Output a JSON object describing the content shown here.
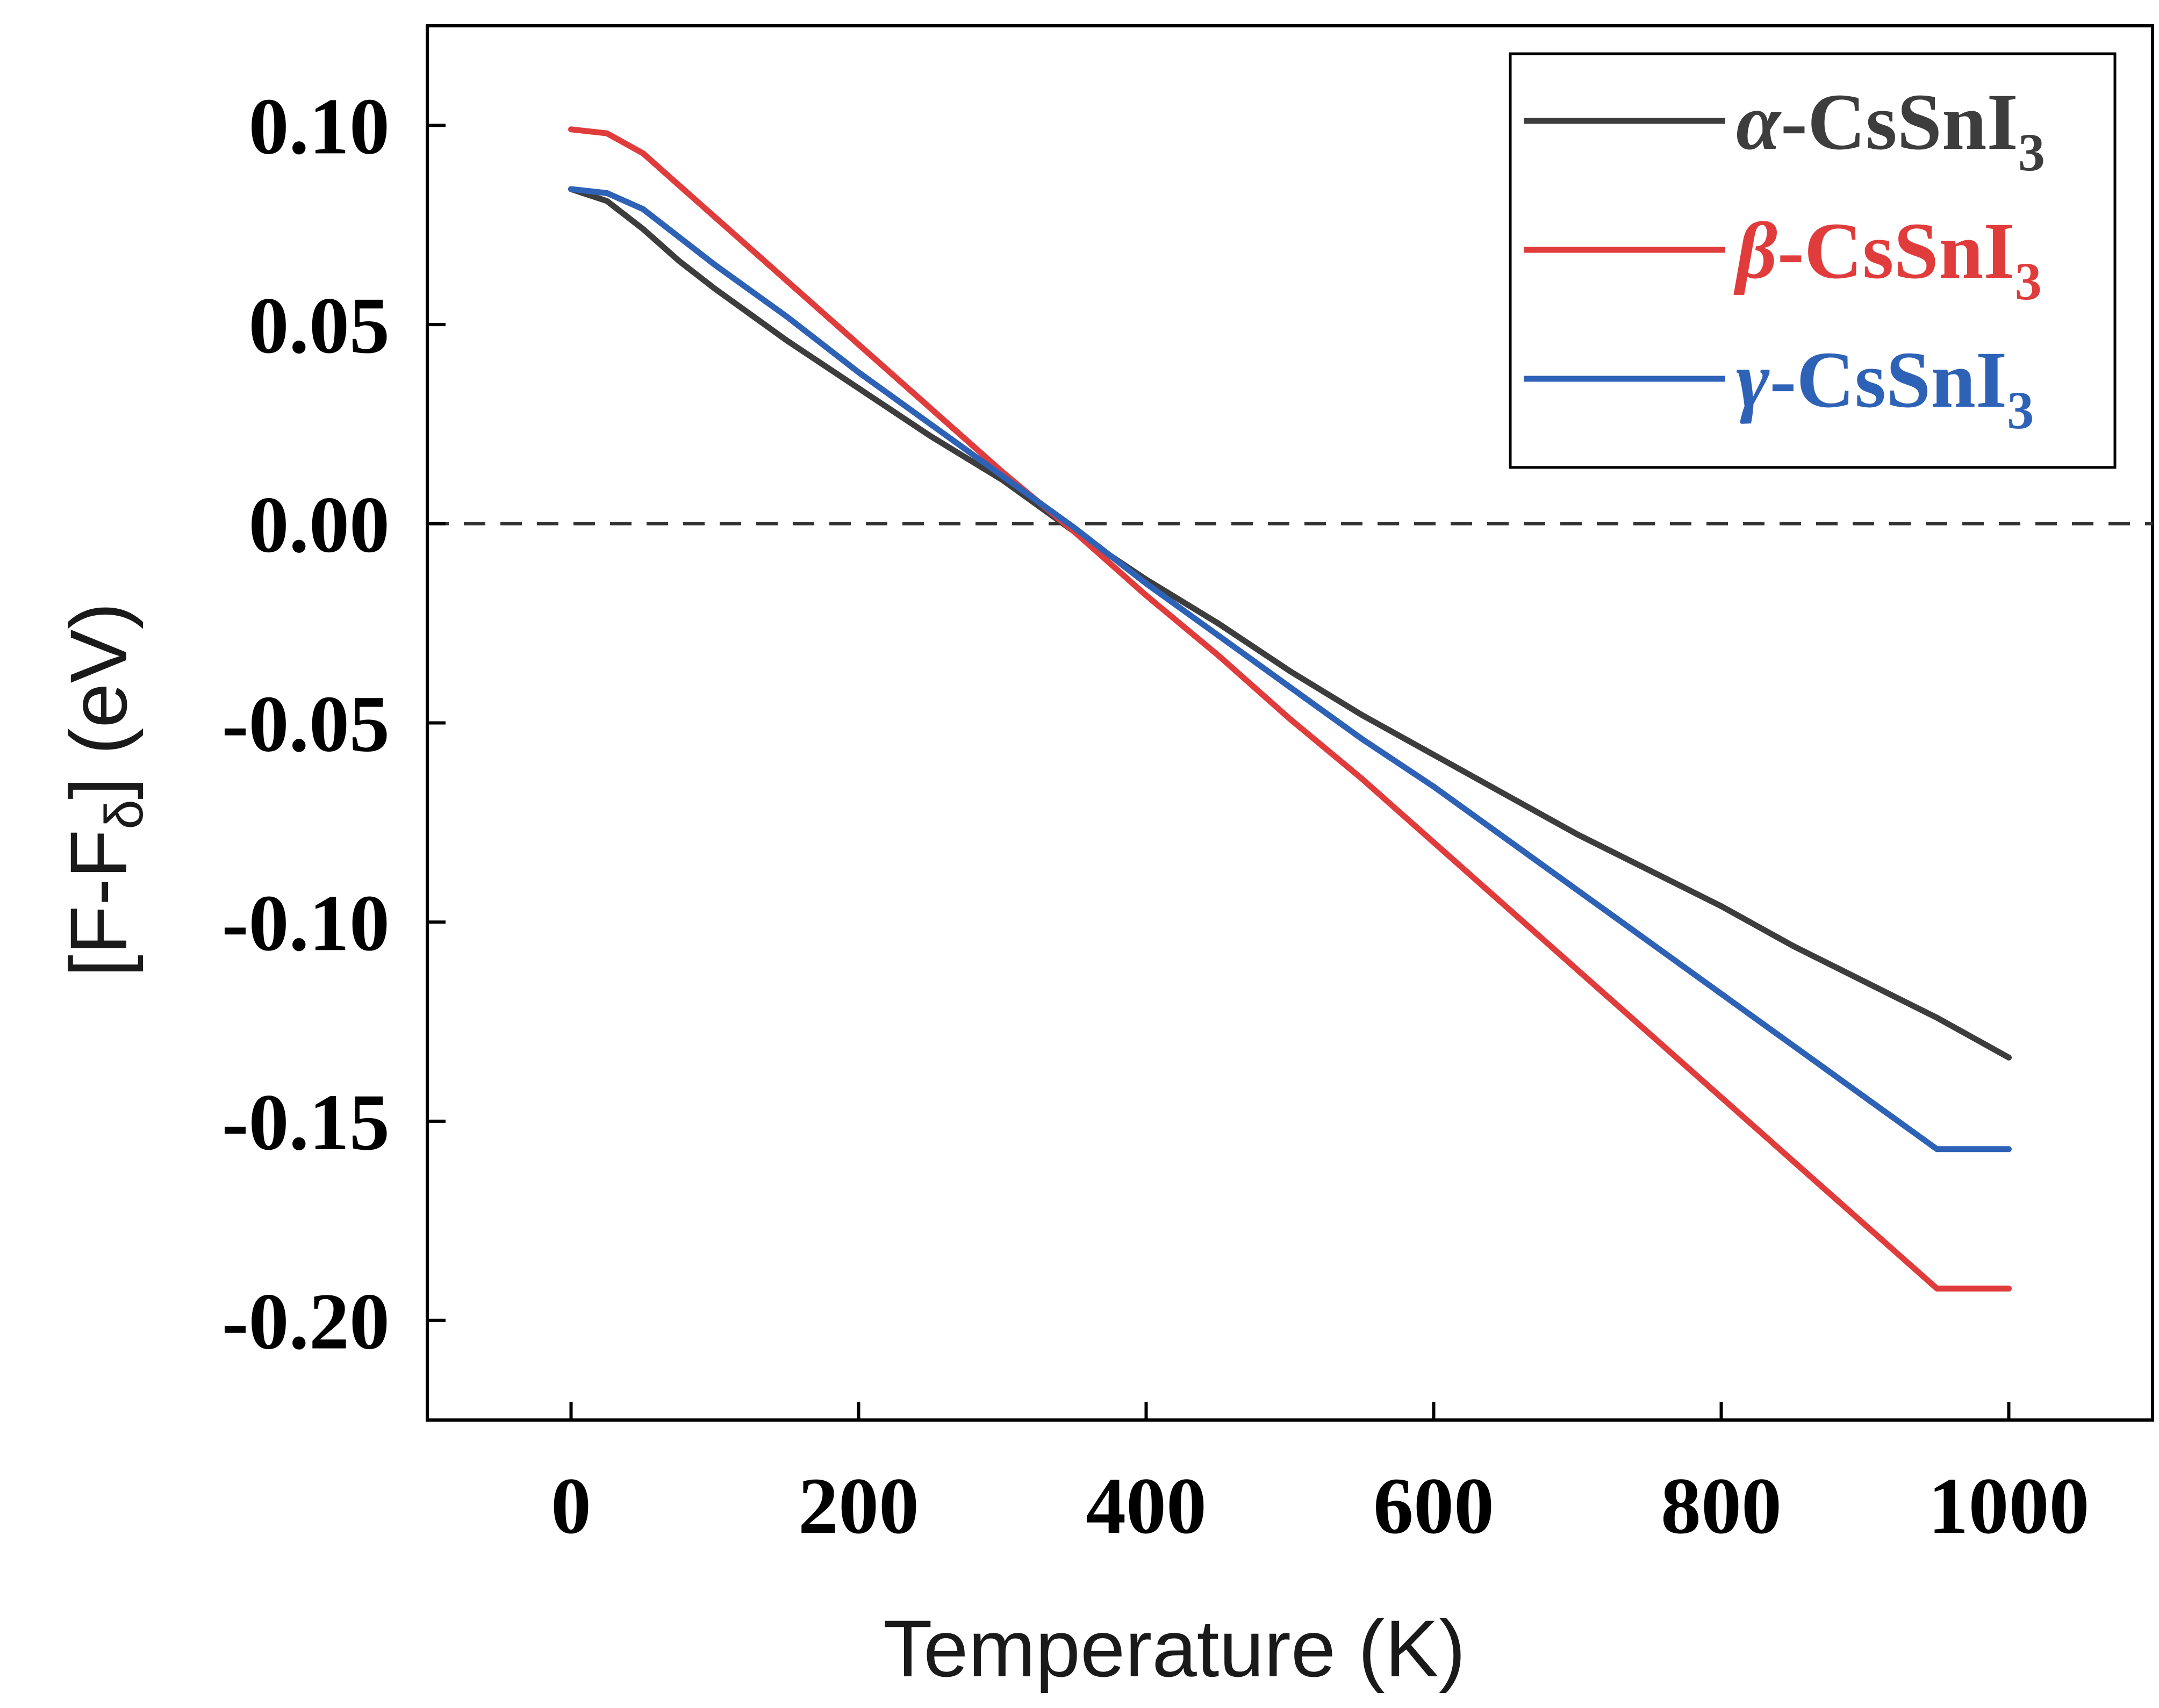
{
  "chart_data": {
    "type": "line",
    "xlabel": "Temperature (K)",
    "ylabel": {
      "main": "[F-F",
      "sub": "δ",
      "tail": "] (eV)"
    },
    "xlim": [
      -100,
      1100
    ],
    "ylim": [
      -0.225,
      0.125
    ],
    "xticks": [
      0,
      200,
      400,
      600,
      800,
      1000
    ],
    "xtick_labels": [
      "0",
      "200",
      "400",
      "600",
      "800",
      "1000"
    ],
    "yticks": [
      0.1,
      0.05,
      0.0,
      -0.05,
      -0.1,
      -0.15,
      -0.2
    ],
    "ytick_labels": [
      "0.10",
      "0.05",
      "0.00",
      "-0.05",
      "-0.10",
      "-0.15",
      "-0.20"
    ],
    "reference_line": {
      "y": 0.0,
      "style": "dashed",
      "color": "#333333"
    },
    "legend_position": "top-right",
    "grid": false,
    "series": [
      {
        "name": {
          "greek": "α",
          "formula": "-CsSnI",
          "sub": "3"
        },
        "color": "#3d3d3d",
        "x": [
          0,
          25,
          50,
          75,
          100,
          150,
          200,
          250,
          300,
          350,
          400,
          450,
          500,
          550,
          600,
          650,
          700,
          750,
          800,
          850,
          900,
          950,
          1000
        ],
        "y": [
          0.084,
          0.081,
          0.074,
          0.066,
          0.059,
          0.046,
          0.034,
          0.022,
          0.011,
          -0.002,
          -0.014,
          -0.025,
          -0.037,
          -0.048,
          -0.058,
          -0.068,
          -0.078,
          -0.087,
          -0.096,
          -0.106,
          -0.115,
          -0.124,
          -0.134
        ]
      },
      {
        "name": {
          "greek": "β",
          "formula": "-CsSnI",
          "sub": "3"
        },
        "color": "#e03c3c",
        "x": [
          0,
          25,
          50,
          75,
          100,
          150,
          200,
          250,
          300,
          350,
          400,
          450,
          500,
          550,
          600,
          650,
          700,
          750,
          800,
          850,
          900,
          950,
          1000
        ],
        "y": [
          0.099,
          0.098,
          0.093,
          0.085,
          0.077,
          0.061,
          0.045,
          0.029,
          0.013,
          -0.002,
          -0.018,
          -0.033,
          -0.049,
          -0.064,
          -0.08,
          -0.096,
          -0.112,
          -0.128,
          -0.144,
          -0.16,
          -0.176,
          -0.192,
          -0.192
        ]
      },
      {
        "name": {
          "greek": "γ",
          "formula": "-CsSnI",
          "sub": "3"
        },
        "color": "#2e62b6",
        "x": [
          0,
          25,
          50,
          75,
          100,
          150,
          200,
          250,
          300,
          350,
          400,
          450,
          500,
          550,
          600,
          650,
          700,
          750,
          800,
          850,
          900,
          950,
          1000
        ],
        "y": [
          0.084,
          0.083,
          0.079,
          0.072,
          0.065,
          0.052,
          0.038,
          0.025,
          0.012,
          -0.001,
          -0.015,
          -0.028,
          -0.041,
          -0.054,
          -0.066,
          -0.079,
          -0.092,
          -0.105,
          -0.118,
          -0.131,
          -0.144,
          -0.157,
          -0.157
        ]
      }
    ]
  }
}
